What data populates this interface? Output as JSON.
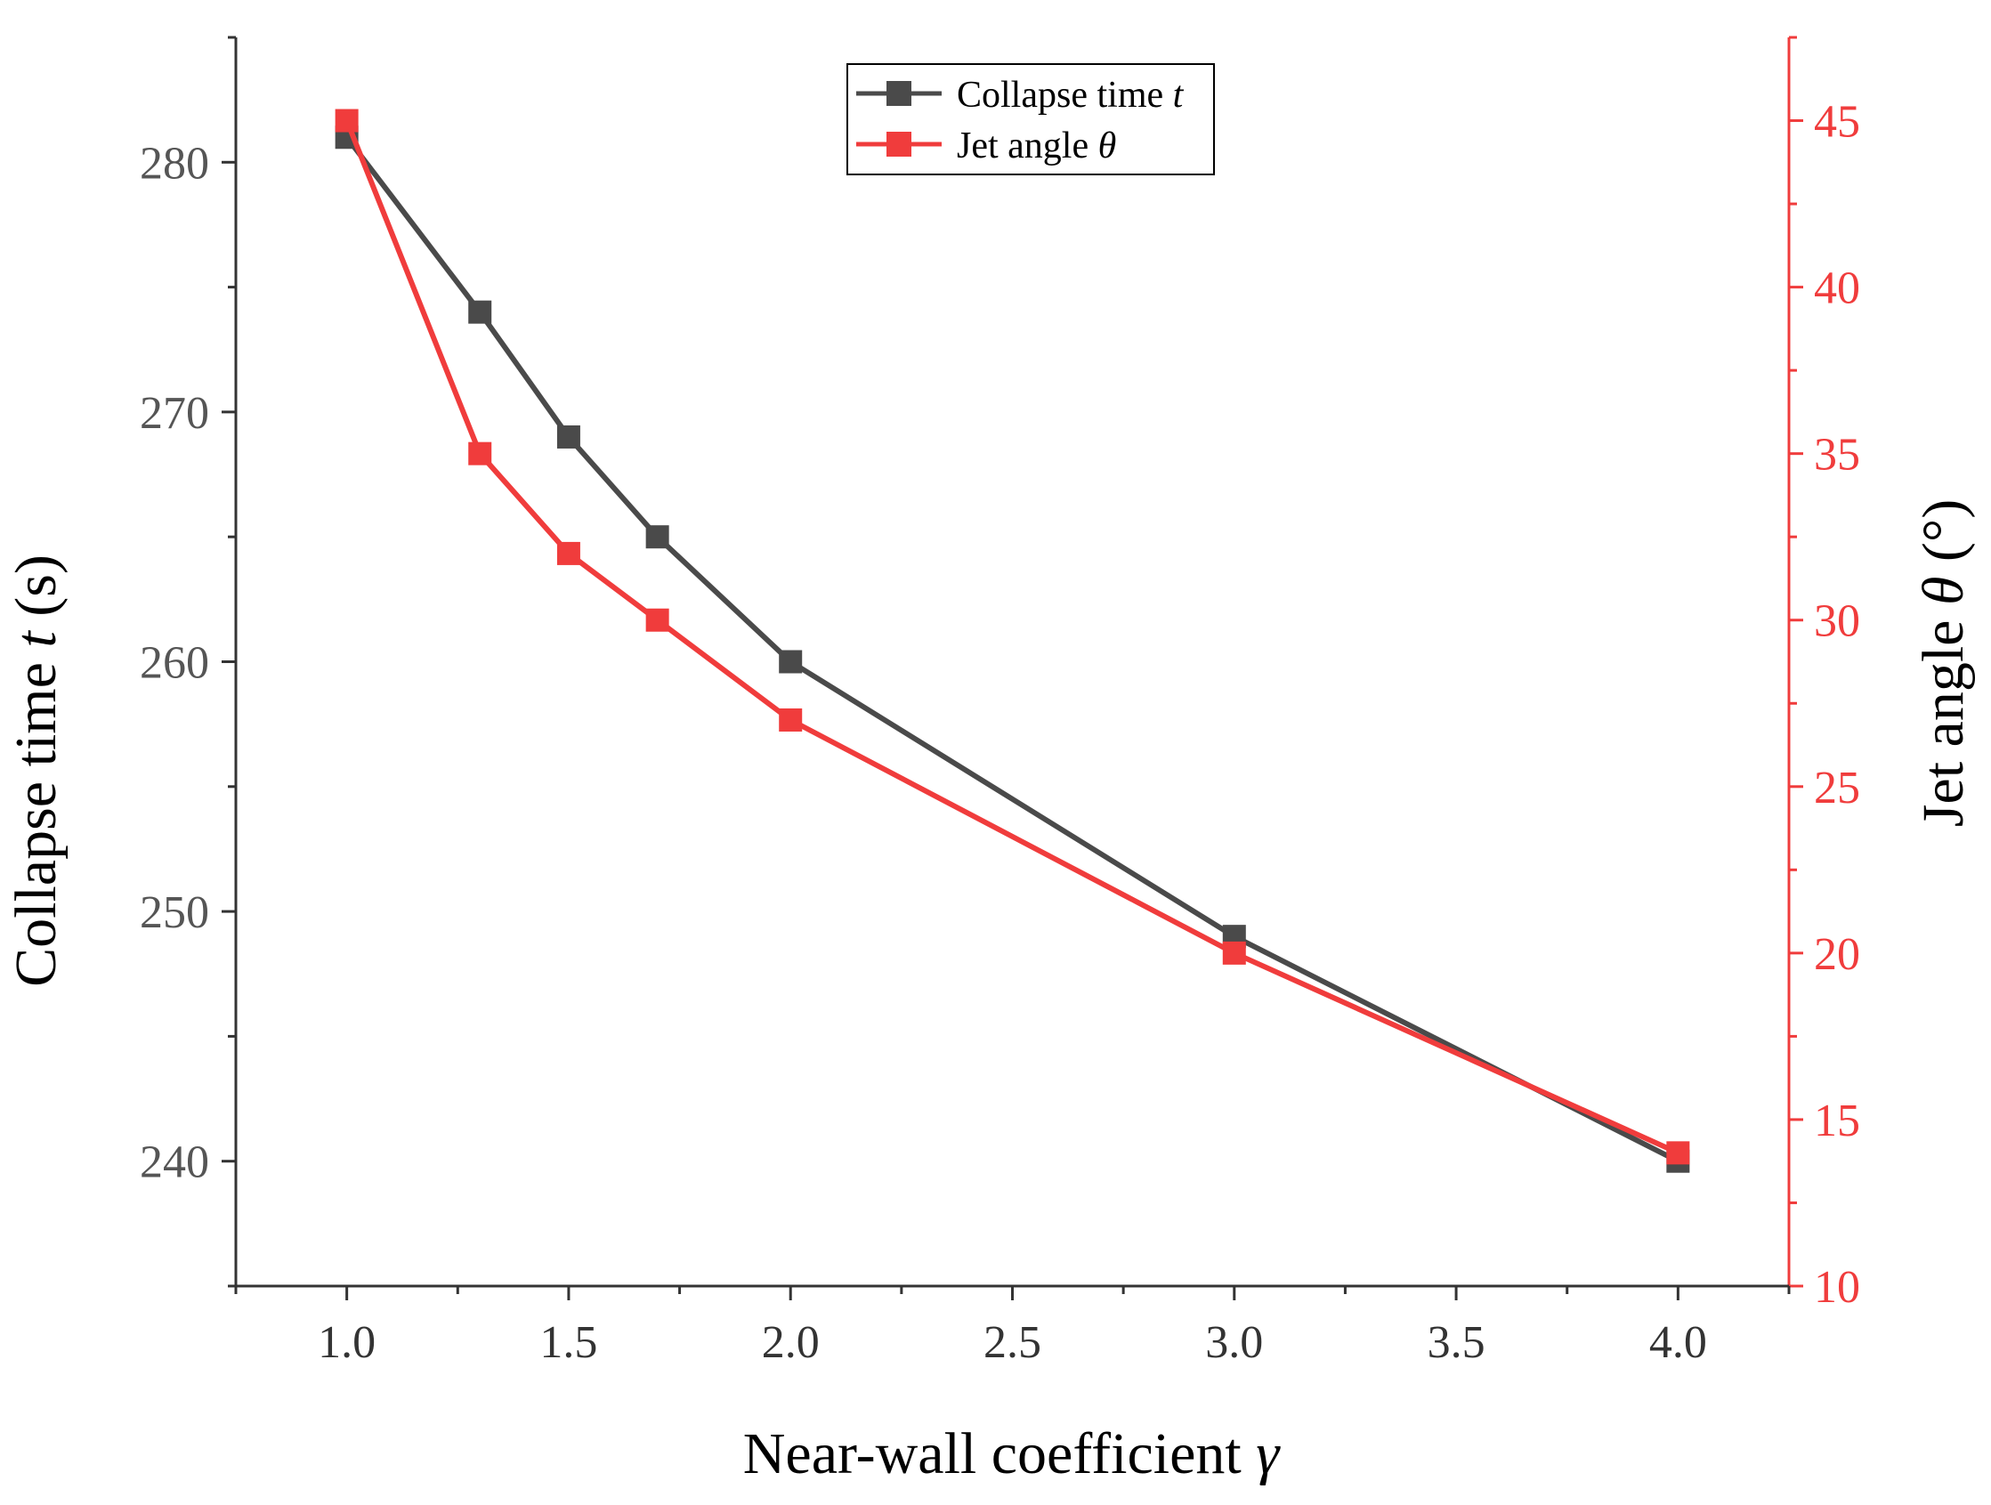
{
  "chart_data": {
    "type": "line",
    "title": "",
    "xlabel": "Near-wall coefficient",
    "xlabel_symbol": "γ",
    "ylabel_left": "Collapse time",
    "ylabel_left_symbol": "t",
    "ylabel_left_unit": "(s)",
    "ylabel_right": "Jet angle",
    "ylabel_right_symbol": "θ",
    "ylabel_right_unit": "(°)",
    "xlim": [
      0.75,
      4.25
    ],
    "ylim_left": [
      235,
      285
    ],
    "ylim_right": [
      10,
      47.5
    ],
    "x_ticks": [
      "1.0",
      "1.5",
      "2.0",
      "2.5",
      "3.0",
      "3.5",
      "4.0"
    ],
    "y_left_ticks": [
      "240",
      "250",
      "260",
      "270",
      "280"
    ],
    "y_right_ticks": [
      "10",
      "15",
      "20",
      "25",
      "30",
      "35",
      "40",
      "45"
    ],
    "legend_position": "top-center",
    "series": [
      {
        "name": "Collapse time",
        "symbol": "t",
        "axis": "left",
        "color": "#4a4a4a",
        "marker": "square",
        "x": [
          1.0,
          1.3,
          1.5,
          1.7,
          2.0,
          3.0,
          4.0
        ],
        "values": [
          281,
          274,
          269,
          265,
          260,
          249,
          240
        ]
      },
      {
        "name": "Jet angle",
        "symbol": "θ",
        "axis": "right",
        "color": "#f03c3c",
        "marker": "square",
        "x": [
          1.0,
          1.3,
          1.5,
          1.7,
          2.0,
          3.0,
          4.0
        ],
        "values": [
          45,
          35,
          32,
          30,
          27,
          20,
          14
        ]
      }
    ]
  }
}
